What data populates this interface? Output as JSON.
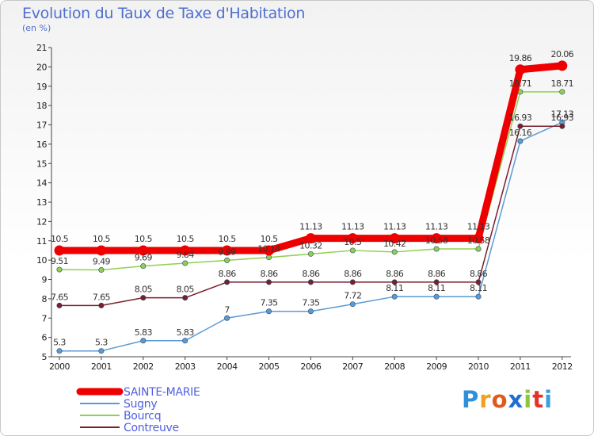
{
  "title": "Evolution du Taux de Taxe d'Habitation",
  "subtitle": "(en %)",
  "logo": [
    "P",
    "r",
    "o",
    "x",
    "i",
    "t",
    "i"
  ],
  "chart_data": {
    "type": "line",
    "title": "Evolution du Taux de Taxe d'Habitation",
    "ylabel": "(en %)",
    "xlabel": "",
    "ylim": [
      5,
      21
    ],
    "grid": false,
    "legend_position": "bottom-left",
    "x": [
      "2000",
      "2001",
      "2002",
      "2003",
      "2004",
      "2005",
      "2006",
      "2007",
      "2008",
      "2009",
      "2010",
      "2011",
      "2012"
    ],
    "y_ticks": [
      "5",
      "6",
      "7",
      "8",
      "9",
      "10",
      "11",
      "12",
      "13",
      "14",
      "15",
      "16",
      "17",
      "18",
      "19",
      "20",
      "21"
    ],
    "series": [
      {
        "name": "Sugny",
        "color": "#5b9bd5",
        "values": [
          5.3,
          5.3,
          5.83,
          5.83,
          7,
          7.35,
          7.35,
          7.72,
          8.11,
          8.11,
          8.11,
          16.16,
          17.13
        ],
        "labels": [
          "5.3",
          "5.3",
          "5.83",
          "5.83",
          "7",
          "7.35",
          "7.35",
          "7.72",
          "8.11",
          "8.11",
          "8.11",
          "16.16",
          "17.13"
        ]
      },
      {
        "name": "Bourcq",
        "color": "#90d050",
        "values": [
          9.51,
          9.49,
          9.69,
          9.84,
          9.99,
          10.14,
          10.32,
          10.5,
          10.42,
          10.58,
          10.58,
          18.71,
          18.71
        ],
        "labels": [
          "9.51",
          "9.49",
          "9.69",
          "9.84",
          "9.99",
          "10.14",
          "10.32",
          "10.5",
          "10.42",
          "10.58",
          "10.58",
          "18.71",
          "18.71"
        ]
      },
      {
        "name": "Contreuve",
        "color": "#7a1f2b",
        "values": [
          7.65,
          7.65,
          8.05,
          8.05,
          8.86,
          8.86,
          8.86,
          8.86,
          8.86,
          8.86,
          8.86,
          16.93,
          16.93
        ],
        "labels": [
          "7.65",
          "7.65",
          "8.05",
          "8.05",
          "8.86",
          "8.86",
          "8.86",
          "8.86",
          "8.86",
          "8.86",
          "8.86",
          "16.93",
          "16.93"
        ]
      },
      {
        "name": "SAINTE-MARIE",
        "color": "#ee0000",
        "values": [
          10.5,
          10.5,
          10.5,
          10.5,
          10.5,
          10.5,
          11.13,
          11.13,
          11.13,
          11.13,
          11.13,
          19.86,
          20.06
        ],
        "labels": [
          "10.5",
          "10.5",
          "10.5",
          "10.5",
          "10.5",
          "10.5",
          "11.13",
          "11.13",
          "11.13",
          "11.13",
          "11.13",
          "19.86",
          "20.06"
        ]
      }
    ],
    "legend": [
      "SAINTE-MARIE",
      "Sugny",
      "Bourcq",
      "Contreuve"
    ]
  }
}
